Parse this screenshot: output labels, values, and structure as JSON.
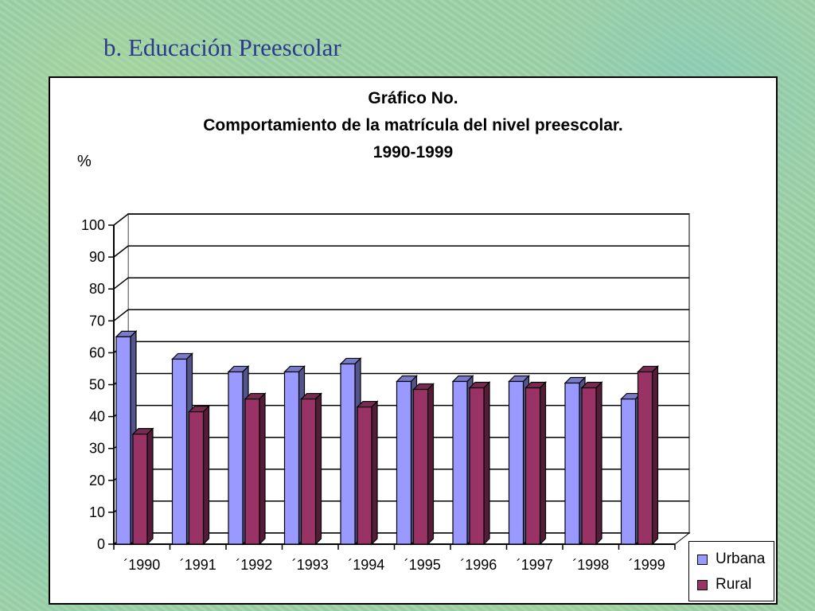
{
  "slide": {
    "title": "b. Educación Preescolar"
  },
  "chart_data": {
    "type": "bar",
    "title_lines": [
      "Gráfico No.",
      "Comportamiento de la matrícula del nivel preescolar.",
      "1990-1999"
    ],
    "ylabel": "%",
    "xlabel": "",
    "ylim": [
      0,
      100
    ],
    "yticks": [
      "0",
      "10",
      "20",
      "30",
      "40",
      "50",
      "60",
      "70",
      "80",
      "90",
      "100"
    ],
    "categories": [
      "´1990",
      "´1991",
      "´1992",
      "´1993",
      "´1994",
      "´1995",
      "´1996",
      "´1997",
      "´1998",
      "´1999"
    ],
    "series": [
      {
        "name": "Urbana",
        "color": "#9999ff",
        "values": [
          65,
          58,
          54,
          54,
          56.5,
          51,
          51,
          51,
          50.5,
          45.5
        ]
      },
      {
        "name": "Rural",
        "color": "#993366",
        "values": [
          34.5,
          41.5,
          45.5,
          45.5,
          43,
          48.5,
          49,
          49,
          49,
          54
        ]
      }
    ],
    "grid": true,
    "legend": "bottom-right",
    "style": "3d-clustered-columns"
  }
}
